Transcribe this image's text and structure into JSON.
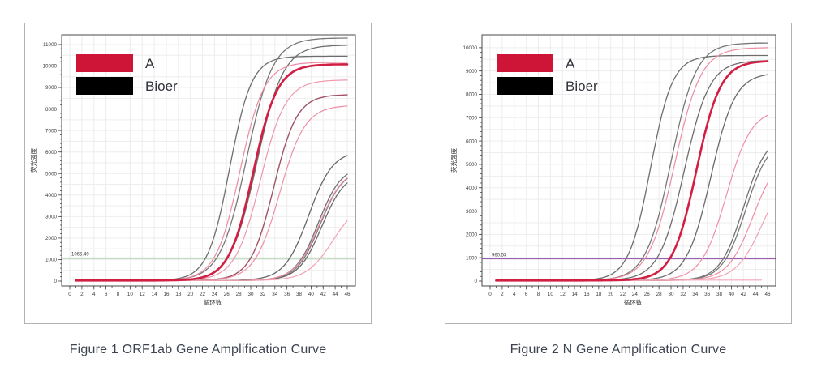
{
  "page": {
    "background": "#ffffff"
  },
  "figures": [
    {
      "caption": "Figure 1 ORF1ab Gene Amplification Curve",
      "chart_data": {
        "type": "line",
        "title": "",
        "xlabel": "循环数",
        "ylabel": "荧光强度",
        "xlim": [
          0,
          46
        ],
        "xtick_step": 2,
        "ylim": [
          0,
          11450
        ],
        "ytick_max": 11000,
        "ytick_step": 1000,
        "grid": true,
        "legend_position": "upper-left",
        "legend": [
          {
            "label": "A",
            "color": "#ce1538"
          },
          {
            "label": "Bioer",
            "color": "#000000"
          }
        ],
        "threshold": {
          "value": 1065.49,
          "label": "1065.49",
          "color": "#8fbe8f"
        },
        "baseline_value": 25,
        "series": [
          {
            "name": "bioer-1",
            "group": "Bioer",
            "color": "#6d6d6d",
            "width": 1.3,
            "midpoint": 26.5,
            "slope": 0.55,
            "plateau": 10430,
            "x_end": 46
          },
          {
            "name": "bioer-2",
            "group": "Bioer",
            "color": "#787878",
            "width": 1.3,
            "midpoint": 29.3,
            "slope": 0.46,
            "plateau": 11280,
            "x_end": 46
          },
          {
            "name": "bioer-3",
            "group": "Bioer",
            "color": "#6d6d6d",
            "width": 1.3,
            "midpoint": 31.0,
            "slope": 0.46,
            "plateau": 10950,
            "x_end": 46
          },
          {
            "name": "a-1",
            "group": "A",
            "color": "#ec8ba0",
            "width": 1.2,
            "midpoint": 28.2,
            "slope": 0.5,
            "plateau": 10150,
            "x_end": 46
          },
          {
            "name": "a-2",
            "group": "A",
            "color": "#ef97ab",
            "width": 1.2,
            "midpoint": 31.6,
            "slope": 0.48,
            "plateau": 9330,
            "x_end": 46
          },
          {
            "name": "a-3",
            "group": "A",
            "color": "#9e5264",
            "width": 1.4,
            "midpoint": 33.8,
            "slope": 0.52,
            "plateau": 8650,
            "x_end": 46
          },
          {
            "name": "a-4",
            "group": "A",
            "color": "#ee8fa4",
            "width": 1.2,
            "midpoint": 34.8,
            "slope": 0.48,
            "plateau": 8150,
            "x_end": 46
          },
          {
            "name": "bioer-4",
            "group": "Bioer",
            "color": "#666666",
            "width": 1.3,
            "midpoint": 39.6,
            "slope": 0.5,
            "plateau": 6050,
            "x_end": 46
          },
          {
            "name": "bioer-5",
            "group": "Bioer",
            "color": "#707070",
            "width": 1.3,
            "midpoint": 41.2,
            "slope": 0.52,
            "plateau": 5350,
            "x_end": 46
          },
          {
            "name": "bioer-6",
            "group": "Bioer",
            "color": "#7a7a7a",
            "width": 1.3,
            "midpoint": 41.5,
            "slope": 0.52,
            "plateau": 5200,
            "x_end": 46
          },
          {
            "name": "bioer-7",
            "group": "Bioer",
            "color": "#6a6a6a",
            "width": 1.3,
            "midpoint": 41.8,
            "slope": 0.52,
            "plateau": 5050,
            "x_end": 46
          },
          {
            "name": "a-5",
            "group": "A",
            "color": "#ee8fa4",
            "width": 1.2,
            "midpoint": 41.4,
            "slope": 0.5,
            "plateau": 5250,
            "x_end": 46
          },
          {
            "name": "a-6",
            "group": "A",
            "color": "#f0a1b1",
            "width": 1.2,
            "midpoint": 43.6,
            "slope": 0.46,
            "plateau": 3700,
            "x_end": 46
          },
          {
            "name": "a-bold",
            "group": "A",
            "color": "#d11e42",
            "width": 2.6,
            "midpoint": 30.4,
            "slope": 0.5,
            "plateau": 10060,
            "x_end": 46
          }
        ]
      }
    },
    {
      "caption": "Figure 2 N Gene Amplification Curve",
      "chart_data": {
        "type": "line",
        "title": "",
        "xlabel": "循环数",
        "ylabel": "荧光强度",
        "xlim": [
          0,
          46
        ],
        "xtick_step": 2,
        "ylim": [
          0,
          10550
        ],
        "ytick_max": 10000,
        "ytick_step": 1000,
        "grid": true,
        "legend_position": "upper-left",
        "legend": [
          {
            "label": "A",
            "color": "#ce1538"
          },
          {
            "label": "Bioer",
            "color": "#000000"
          }
        ],
        "threshold": {
          "value": 960.53,
          "label": "960.53",
          "color": "#9a5fae"
        },
        "baseline_value": 25,
        "series": [
          {
            "name": "bioer-1",
            "group": "Bioer",
            "color": "#6d6d6d",
            "width": 1.3,
            "midpoint": 26.6,
            "slope": 0.55,
            "plateau": 9640,
            "x_end": 46
          },
          {
            "name": "bioer-2",
            "group": "Bioer",
            "color": "#777777",
            "width": 1.3,
            "midpoint": 30.0,
            "slope": 0.48,
            "plateau": 10180,
            "x_end": 46
          },
          {
            "name": "a-1",
            "group": "A",
            "color": "#ec8ba0",
            "width": 1.2,
            "midpoint": 30.6,
            "slope": 0.46,
            "plateau": 9980,
            "x_end": 46
          },
          {
            "name": "bioer-3",
            "group": "Bioer",
            "color": "#6d6d6d",
            "width": 1.3,
            "midpoint": 32.2,
            "slope": 0.48,
            "plateau": 9430,
            "x_end": 46
          },
          {
            "name": "bioer-4",
            "group": "Bioer",
            "color": "#6a6a6a",
            "width": 1.3,
            "midpoint": 36.6,
            "slope": 0.5,
            "plateau": 8900,
            "x_end": 46
          },
          {
            "name": "a-2",
            "group": "A",
            "color": "#ee8fa4",
            "width": 1.2,
            "midpoint": 39.2,
            "slope": 0.48,
            "plateau": 7350,
            "x_end": 46
          },
          {
            "name": "bioer-5",
            "group": "Bioer",
            "color": "#707070",
            "width": 1.3,
            "midpoint": 42.0,
            "slope": 0.52,
            "plateau": 6250,
            "x_end": 46
          },
          {
            "name": "bioer-6",
            "group": "Bioer",
            "color": "#7a7a7a",
            "width": 1.3,
            "midpoint": 42.4,
            "slope": 0.52,
            "plateau": 6100,
            "x_end": 46
          },
          {
            "name": "a-3",
            "group": "A",
            "color": "#ee8fa4",
            "width": 1.2,
            "midpoint": 43.6,
            "slope": 0.48,
            "plateau": 5500,
            "x_end": 46
          },
          {
            "name": "a-4",
            "group": "A",
            "color": "#f0a1b1",
            "width": 1.2,
            "midpoint": 45.2,
            "slope": 0.46,
            "plateau": 4900,
            "x_end": 46
          },
          {
            "name": "a-flat-negative",
            "group": "A",
            "color": "#f2a9b8",
            "width": 1.2,
            "midpoint": 0,
            "slope": 0,
            "plateau": 40,
            "x_end": 45
          },
          {
            "name": "a-bold",
            "group": "A",
            "color": "#d11e42",
            "width": 2.6,
            "midpoint": 34.2,
            "slope": 0.5,
            "plateau": 9420,
            "x_end": 46
          }
        ]
      }
    }
  ]
}
